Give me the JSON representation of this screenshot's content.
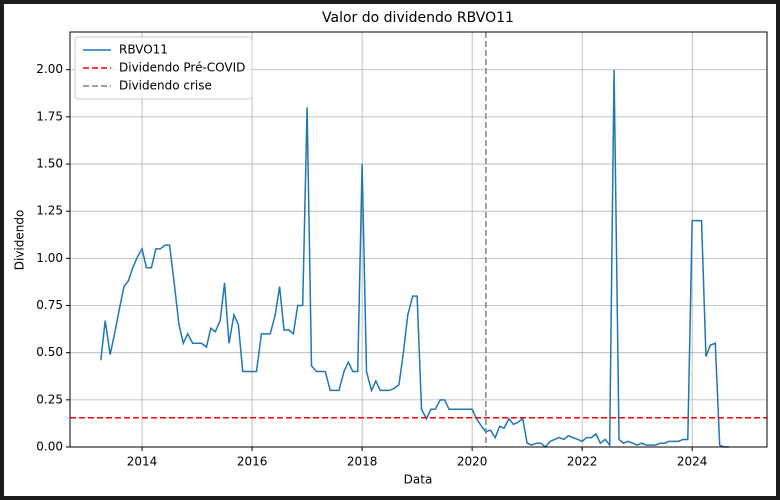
{
  "chart_data": {
    "type": "line",
    "title": "Valor do dividendo RBVO11",
    "x_label": "Data",
    "y_label": "Dividendo",
    "series": [
      {
        "name": "RBVO11",
        "color": "#1f77b4",
        "x": [
          2013.25,
          2013.33,
          2013.42,
          2013.5,
          2013.58,
          2013.67,
          2013.75,
          2013.83,
          2013.92,
          2014.0,
          2014.08,
          2014.17,
          2014.25,
          2014.33,
          2014.42,
          2014.5,
          2014.58,
          2014.67,
          2014.75,
          2014.83,
          2014.92,
          2015.0,
          2015.08,
          2015.17,
          2015.25,
          2015.33,
          2015.42,
          2015.5,
          2015.58,
          2015.67,
          2015.75,
          2015.83,
          2015.92,
          2016.0,
          2016.08,
          2016.17,
          2016.25,
          2016.33,
          2016.42,
          2016.5,
          2016.58,
          2016.67,
          2016.75,
          2016.83,
          2016.92,
          2017.0,
          2017.08,
          2017.17,
          2017.25,
          2017.33,
          2017.42,
          2017.5,
          2017.58,
          2017.67,
          2017.75,
          2017.83,
          2017.92,
          2018.0,
          2018.08,
          2018.17,
          2018.25,
          2018.33,
          2018.42,
          2018.5,
          2018.58,
          2018.67,
          2018.75,
          2018.83,
          2018.92,
          2019.0,
          2019.08,
          2019.17,
          2019.25,
          2019.33,
          2019.42,
          2019.5,
          2019.58,
          2019.67,
          2019.75,
          2019.83,
          2019.92,
          2020.0,
          2020.08,
          2020.17,
          2020.25,
          2020.33,
          2020.42,
          2020.5,
          2020.58,
          2020.67,
          2020.75,
          2020.83,
          2020.92,
          2021.0,
          2021.08,
          2021.17,
          2021.25,
          2021.33,
          2021.42,
          2021.5,
          2021.58,
          2021.67,
          2021.75,
          2021.83,
          2021.92,
          2022.0,
          2022.08,
          2022.17,
          2022.25,
          2022.33,
          2022.42,
          2022.5,
          2022.58,
          2022.67,
          2022.75,
          2022.83,
          2022.92,
          2023.0,
          2023.08,
          2023.17,
          2023.25,
          2023.33,
          2023.42,
          2023.5,
          2023.58,
          2023.67,
          2023.75,
          2023.83,
          2023.92,
          2024.0,
          2024.08,
          2024.17,
          2024.25,
          2024.33,
          2024.42,
          2024.5,
          2024.58,
          2024.67
        ],
        "values": [
          0.46,
          0.67,
          0.49,
          0.6,
          0.72,
          0.85,
          0.88,
          0.95,
          1.01,
          1.05,
          0.95,
          0.95,
          1.05,
          1.05,
          1.07,
          1.07,
          0.88,
          0.65,
          0.55,
          0.6,
          0.55,
          0.55,
          0.55,
          0.53,
          0.63,
          0.61,
          0.67,
          0.87,
          0.55,
          0.7,
          0.65,
          0.4,
          0.4,
          0.4,
          0.4,
          0.6,
          0.6,
          0.6,
          0.7,
          0.85,
          0.62,
          0.62,
          0.6,
          0.75,
          0.75,
          1.8,
          0.43,
          0.4,
          0.4,
          0.4,
          0.3,
          0.3,
          0.3,
          0.4,
          0.45,
          0.4,
          0.4,
          1.5,
          0.4,
          0.3,
          0.35,
          0.3,
          0.3,
          0.3,
          0.31,
          0.33,
          0.5,
          0.7,
          0.8,
          0.8,
          0.2,
          0.15,
          0.2,
          0.2,
          0.25,
          0.25,
          0.2,
          0.2,
          0.2,
          0.2,
          0.2,
          0.2,
          0.15,
          0.11,
          0.08,
          0.09,
          0.05,
          0.11,
          0.1,
          0.15,
          0.12,
          0.13,
          0.15,
          0.02,
          0.01,
          0.02,
          0.02,
          0,
          0.03,
          0.04,
          0.05,
          0.04,
          0.06,
          0.05,
          0.04,
          0.03,
          0.05,
          0.05,
          0.07,
          0.02,
          0.04,
          0.01,
          2.0,
          0.04,
          0.02,
          0.03,
          0.02,
          0.01,
          0.02,
          0.01,
          0.01,
          0.01,
          0.02,
          0.02,
          0.03,
          0.03,
          0.03,
          0.04,
          0.04,
          1.2,
          1.2,
          1.2,
          0.48,
          0.54,
          0.55,
          0.01,
          0,
          0
        ]
      }
    ],
    "reference_lines": [
      {
        "name": "Dividendo Pré-COVID",
        "color": "#ff0000",
        "orientation": "horizontal",
        "value": 0.155
      },
      {
        "name": "Dividendo crise",
        "color": "#808080",
        "orientation": "vertical",
        "value": 2020.25
      }
    ],
    "xlim": [
      2012.69,
      2025.36
    ],
    "xticks": [
      2014,
      2016,
      2018,
      2020,
      2022,
      2024
    ],
    "ylim": [
      0,
      2.2
    ],
    "yticks": [
      {
        "value": 0,
        "label": "0.00"
      },
      {
        "value": 0.25,
        "label": "0.25"
      },
      {
        "value": 0.5,
        "label": "0.50"
      },
      {
        "value": 0.75,
        "label": "0.75"
      },
      {
        "value": 1,
        "label": "1.00"
      },
      {
        "value": 1.25,
        "label": "1.25"
      },
      {
        "value": 1.5,
        "label": "1.50"
      },
      {
        "value": 1.75,
        "label": "1.75"
      },
      {
        "value": 2,
        "label": "2.00"
      }
    ],
    "grid": true,
    "legend": "upper-left"
  }
}
